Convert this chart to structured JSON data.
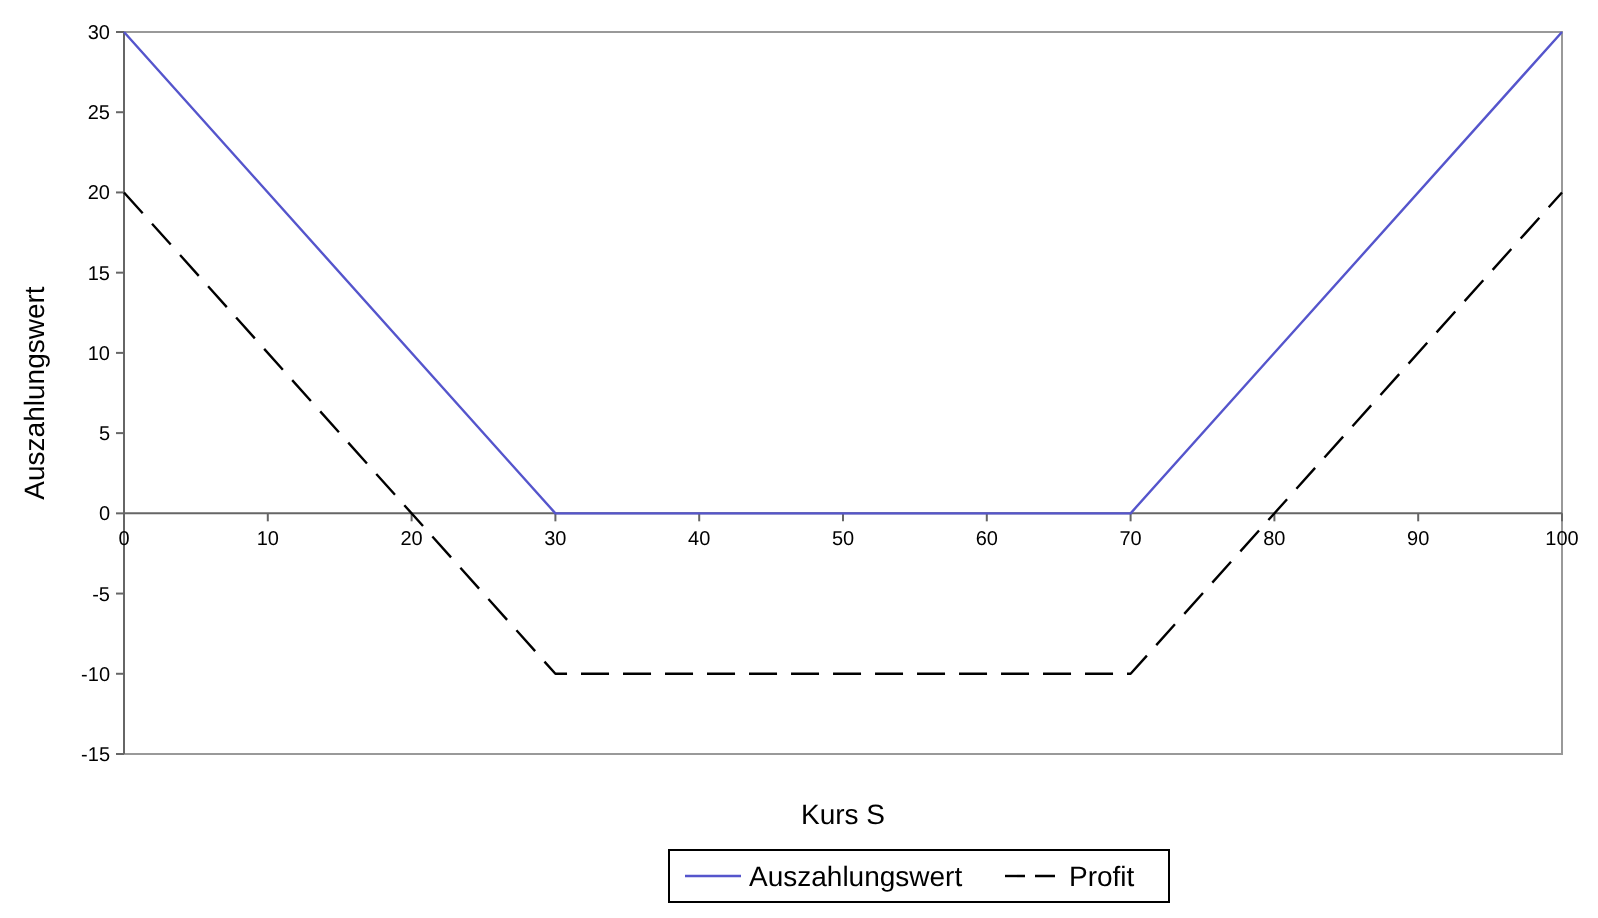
{
  "chart_data": {
    "type": "line",
    "xlabel": "Kurs S",
    "ylabel": "Auszahlungswert",
    "x": [
      0,
      30,
      70,
      100
    ],
    "series": [
      {
        "name": "Auszahlungswert",
        "color": "#5555cc",
        "values": [
          30,
          0,
          0,
          30
        ],
        "line_style": "solid"
      },
      {
        "name": "Profit",
        "color": "#000000",
        "values": [
          20,
          -10,
          -10,
          20
        ],
        "line_style": "dashed"
      }
    ],
    "xlim": [
      0,
      100
    ],
    "xticks": [
      0,
      10,
      20,
      30,
      40,
      50,
      60,
      70,
      80,
      90,
      100
    ],
    "ylim": [
      -15,
      30
    ],
    "yticks": [
      -15,
      -10,
      -5,
      0,
      5,
      10,
      15,
      20,
      25,
      30
    ],
    "grid": false,
    "legend": "bottom",
    "marker": "none"
  }
}
